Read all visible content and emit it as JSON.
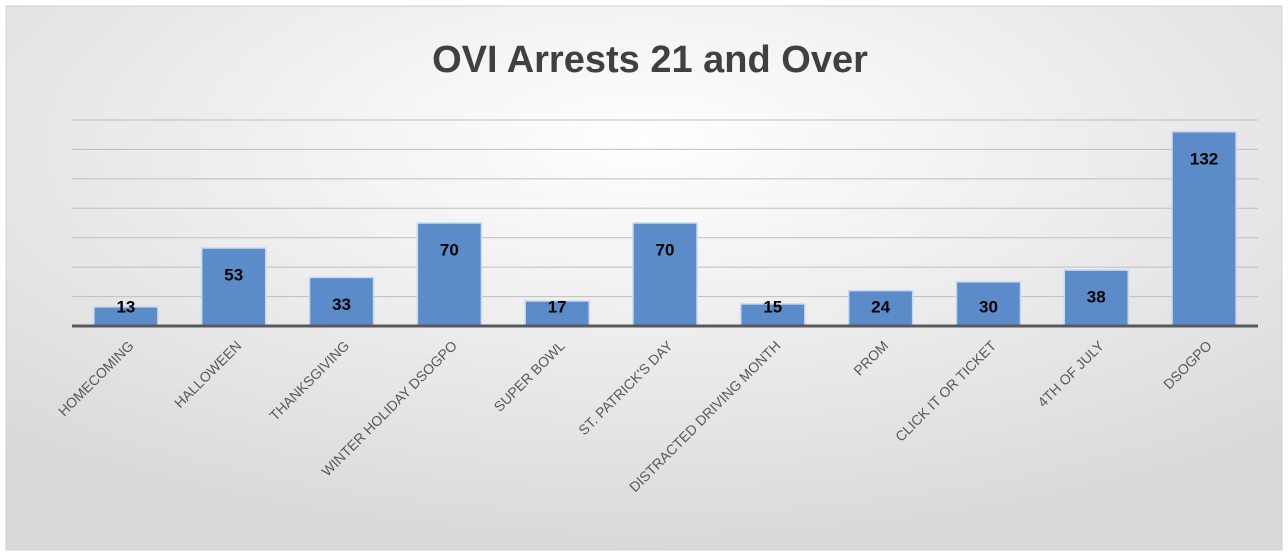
{
  "chart_data": {
    "type": "bar",
    "title": "OVI Arrests 21 and Over",
    "categories": [
      "HOMECOMING",
      "HALLOWEEN",
      "THANKSGIVING",
      "WINTER HOLIDAY DSOGPO",
      "SUPER BOWL",
      "ST. PATRICK'S DAY",
      "DISTRACTED DRIVING MONTH",
      "PROM",
      "CLICK IT OR TICKET",
      "4TH OF JULY",
      "DSOGPO"
    ],
    "values": [
      13,
      53,
      33,
      70,
      17,
      70,
      15,
      24,
      30,
      38,
      132
    ],
    "color": "#5b8bc9",
    "ylim": [
      0,
      140
    ],
    "yticks": [
      0,
      20,
      40,
      60,
      80,
      100,
      120,
      140
    ],
    "grid": true
  }
}
